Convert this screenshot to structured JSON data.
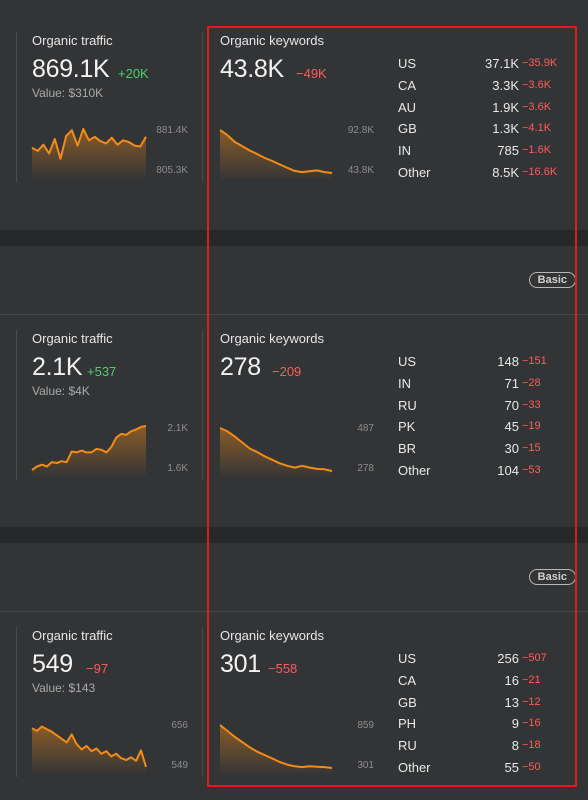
{
  "badges": [
    "Basic",
    "Basic"
  ],
  "sections": [
    {
      "traffic": {
        "label": "Organic traffic",
        "value": "869.1K",
        "delta": "+20K",
        "delta_sign": "pos",
        "value_money": "Value: $310K",
        "axis_max": "881.4K",
        "axis_min": "805.3K",
        "points": [
          0.55,
          0.48,
          0.62,
          0.42,
          0.75,
          0.3,
          0.82,
          0.95,
          0.6,
          0.98,
          0.72,
          0.8,
          0.7,
          0.65,
          0.78,
          0.62,
          0.72,
          0.68,
          0.6,
          0.58,
          0.8
        ]
      },
      "keywords": {
        "label": "Organic keywords",
        "value": "43.8K",
        "delta": "−49K",
        "delta_sign": "neg",
        "axis_max": "92.8K",
        "axis_min": "43.8K",
        "points": [
          1.0,
          0.88,
          0.72,
          0.62,
          0.52,
          0.44,
          0.35,
          0.28,
          0.2,
          0.12,
          0.05,
          0.02,
          0.04,
          0.06,
          0.02,
          0.0
        ]
      },
      "countries": [
        {
          "code": "US",
          "value": "37.1K",
          "delta": "−35.9K"
        },
        {
          "code": "CA",
          "value": "3.3K",
          "delta": "−3.6K"
        },
        {
          "code": "AU",
          "value": "1.9K",
          "delta": "−3.6K"
        },
        {
          "code": "GB",
          "value": "1.3K",
          "delta": "−4.1K"
        },
        {
          "code": "IN",
          "value": "785",
          "delta": "−1.6K"
        },
        {
          "code": "Other",
          "value": "8.5K",
          "delta": "−16.6K"
        }
      ]
    },
    {
      "traffic": {
        "label": "Organic traffic",
        "value": "2.1K",
        "delta": "+537",
        "delta_sign": "pos",
        "value_money": "Value: $4K",
        "axis_max": "2.1K",
        "axis_min": "1.6K",
        "points": [
          0.0,
          0.08,
          0.12,
          0.08,
          0.18,
          0.16,
          0.2,
          0.18,
          0.42,
          0.4,
          0.44,
          0.4,
          0.4,
          0.48,
          0.46,
          0.4,
          0.52,
          0.74,
          0.82,
          0.8,
          0.88,
          0.92,
          0.98,
          1.0
        ]
      },
      "keywords": {
        "label": "Organic keywords",
        "value": "278",
        "delta": "−209",
        "delta_sign": "neg",
        "axis_max": "487",
        "axis_min": "278",
        "points": [
          1.0,
          0.92,
          0.8,
          0.66,
          0.52,
          0.44,
          0.34,
          0.26,
          0.18,
          0.12,
          0.08,
          0.12,
          0.08,
          0.05,
          0.04,
          0.0
        ]
      },
      "countries": [
        {
          "code": "US",
          "value": "148",
          "delta": "−151"
        },
        {
          "code": "IN",
          "value": "71",
          "delta": "−28"
        },
        {
          "code": "RU",
          "value": "70",
          "delta": "−33"
        },
        {
          "code": "PK",
          "value": "45",
          "delta": "−19"
        },
        {
          "code": "BR",
          "value": "30",
          "delta": "−15"
        },
        {
          "code": "Other",
          "value": "104",
          "delta": "−53"
        }
      ]
    },
    {
      "traffic": {
        "label": "Organic traffic",
        "value": "549",
        "delta": "−97",
        "delta_sign": "neg",
        "value_money": "Value: $143",
        "axis_max": "656",
        "axis_min": "549",
        "points": [
          0.88,
          0.82,
          0.92,
          0.86,
          0.8,
          0.72,
          0.64,
          0.56,
          0.74,
          0.52,
          0.4,
          0.48,
          0.36,
          0.42,
          0.3,
          0.36,
          0.24,
          0.3,
          0.2,
          0.16,
          0.22,
          0.14,
          0.38,
          0.0
        ]
      },
      "keywords": {
        "label": "Organic keywords",
        "value": "301",
        "delta": "−558",
        "delta_sign": "neg",
        "axis_max": "859",
        "axis_min": "301",
        "points": [
          1.0,
          0.86,
          0.72,
          0.6,
          0.48,
          0.38,
          0.3,
          0.22,
          0.14,
          0.08,
          0.04,
          0.02,
          0.04,
          0.03,
          0.02,
          0.0
        ]
      },
      "countries": [
        {
          "code": "US",
          "value": "256",
          "delta": "−507"
        },
        {
          "code": "CA",
          "value": "16",
          "delta": "−21"
        },
        {
          "code": "GB",
          "value": "13",
          "delta": "−12"
        },
        {
          "code": "PH",
          "value": "9",
          "delta": "−16"
        },
        {
          "code": "RU",
          "value": "8",
          "delta": "−18"
        },
        {
          "code": "Other",
          "value": "55",
          "delta": "−50"
        }
      ]
    }
  ],
  "colors": {
    "accent": "#f28c16",
    "positive": "#4cd26b",
    "negative": "#ff5b5b",
    "highlight": "#e11a1a"
  }
}
